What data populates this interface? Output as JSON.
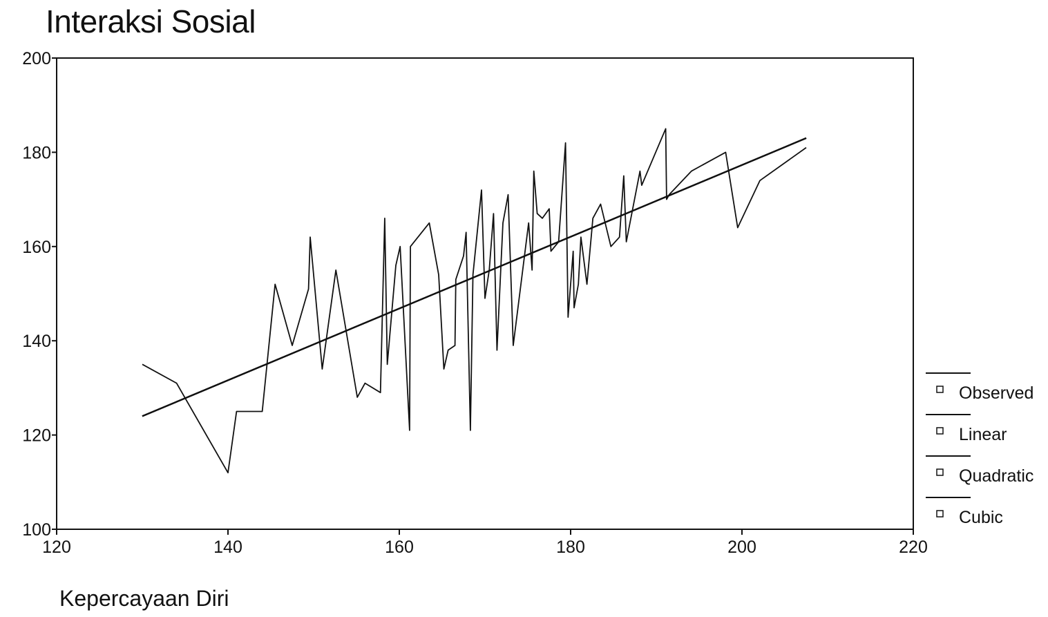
{
  "chart_data": {
    "type": "line",
    "title": "Interaksi Sosial",
    "xlabel": "Kepercayaan Diri",
    "ylabel": "",
    "xlim": [
      120,
      220
    ],
    "ylim": [
      100,
      200
    ],
    "x_ticks": [
      120,
      140,
      160,
      180,
      200,
      220
    ],
    "y_ticks": [
      100,
      120,
      140,
      160,
      180,
      200
    ],
    "grid": false,
    "legend_position": "right",
    "legend": [
      "Observed",
      "Linear",
      "Quadratic",
      "Cubic"
    ],
    "series": [
      {
        "name": "Observed",
        "x": [
          130,
          134,
          140,
          141,
          144,
          145.5,
          147.5,
          149.4,
          149.6,
          151,
          152.6,
          155.1,
          156,
          157.8,
          158.3,
          158.6,
          159.6,
          160.1,
          161.2,
          161.3,
          163.5,
          164.6,
          165.2,
          165.7,
          166.5,
          166.6,
          167.5,
          167.8,
          168.3,
          168.6,
          169.6,
          170,
          170.5,
          171,
          171.4,
          172.1,
          172.7,
          173.3,
          175.1,
          175.5,
          175.7,
          176.1,
          176.7,
          177.5,
          177.7,
          178.6,
          179.4,
          179.7,
          180.3,
          180.4,
          180.9,
          181.2,
          181.9,
          182.5,
          182.6,
          183.5,
          184.7,
          185.7,
          186.2,
          186.5,
          188.1,
          188.3,
          191.1,
          191.2,
          191.5,
          194.1,
          198.1,
          199.5,
          202.1,
          207.5
        ],
        "values": [
          135,
          131,
          112,
          125,
          125,
          152,
          139,
          151,
          162,
          134,
          155,
          128,
          131,
          129,
          166,
          135,
          156,
          160,
          121,
          160,
          165,
          154,
          134,
          138,
          139,
          153,
          158,
          163,
          121,
          154,
          172,
          149,
          155,
          167,
          138,
          165,
          171,
          139,
          165,
          155,
          176,
          167,
          166,
          168,
          159,
          161,
          182,
          145,
          159,
          147,
          152,
          162,
          152,
          164,
          166,
          169,
          160,
          162,
          175,
          161,
          176,
          173,
          185,
          170,
          171,
          176,
          180,
          164,
          174,
          181
        ]
      },
      {
        "name": "Linear",
        "x": [
          130,
          207.5
        ],
        "values": [
          124,
          183
        ]
      },
      {
        "name": "Quadratic",
        "x": [
          130,
          207.5
        ],
        "values": [
          124,
          183
        ]
      },
      {
        "name": "Cubic",
        "x": [
          130,
          207.5
        ],
        "values": [
          124,
          183
        ]
      }
    ]
  }
}
